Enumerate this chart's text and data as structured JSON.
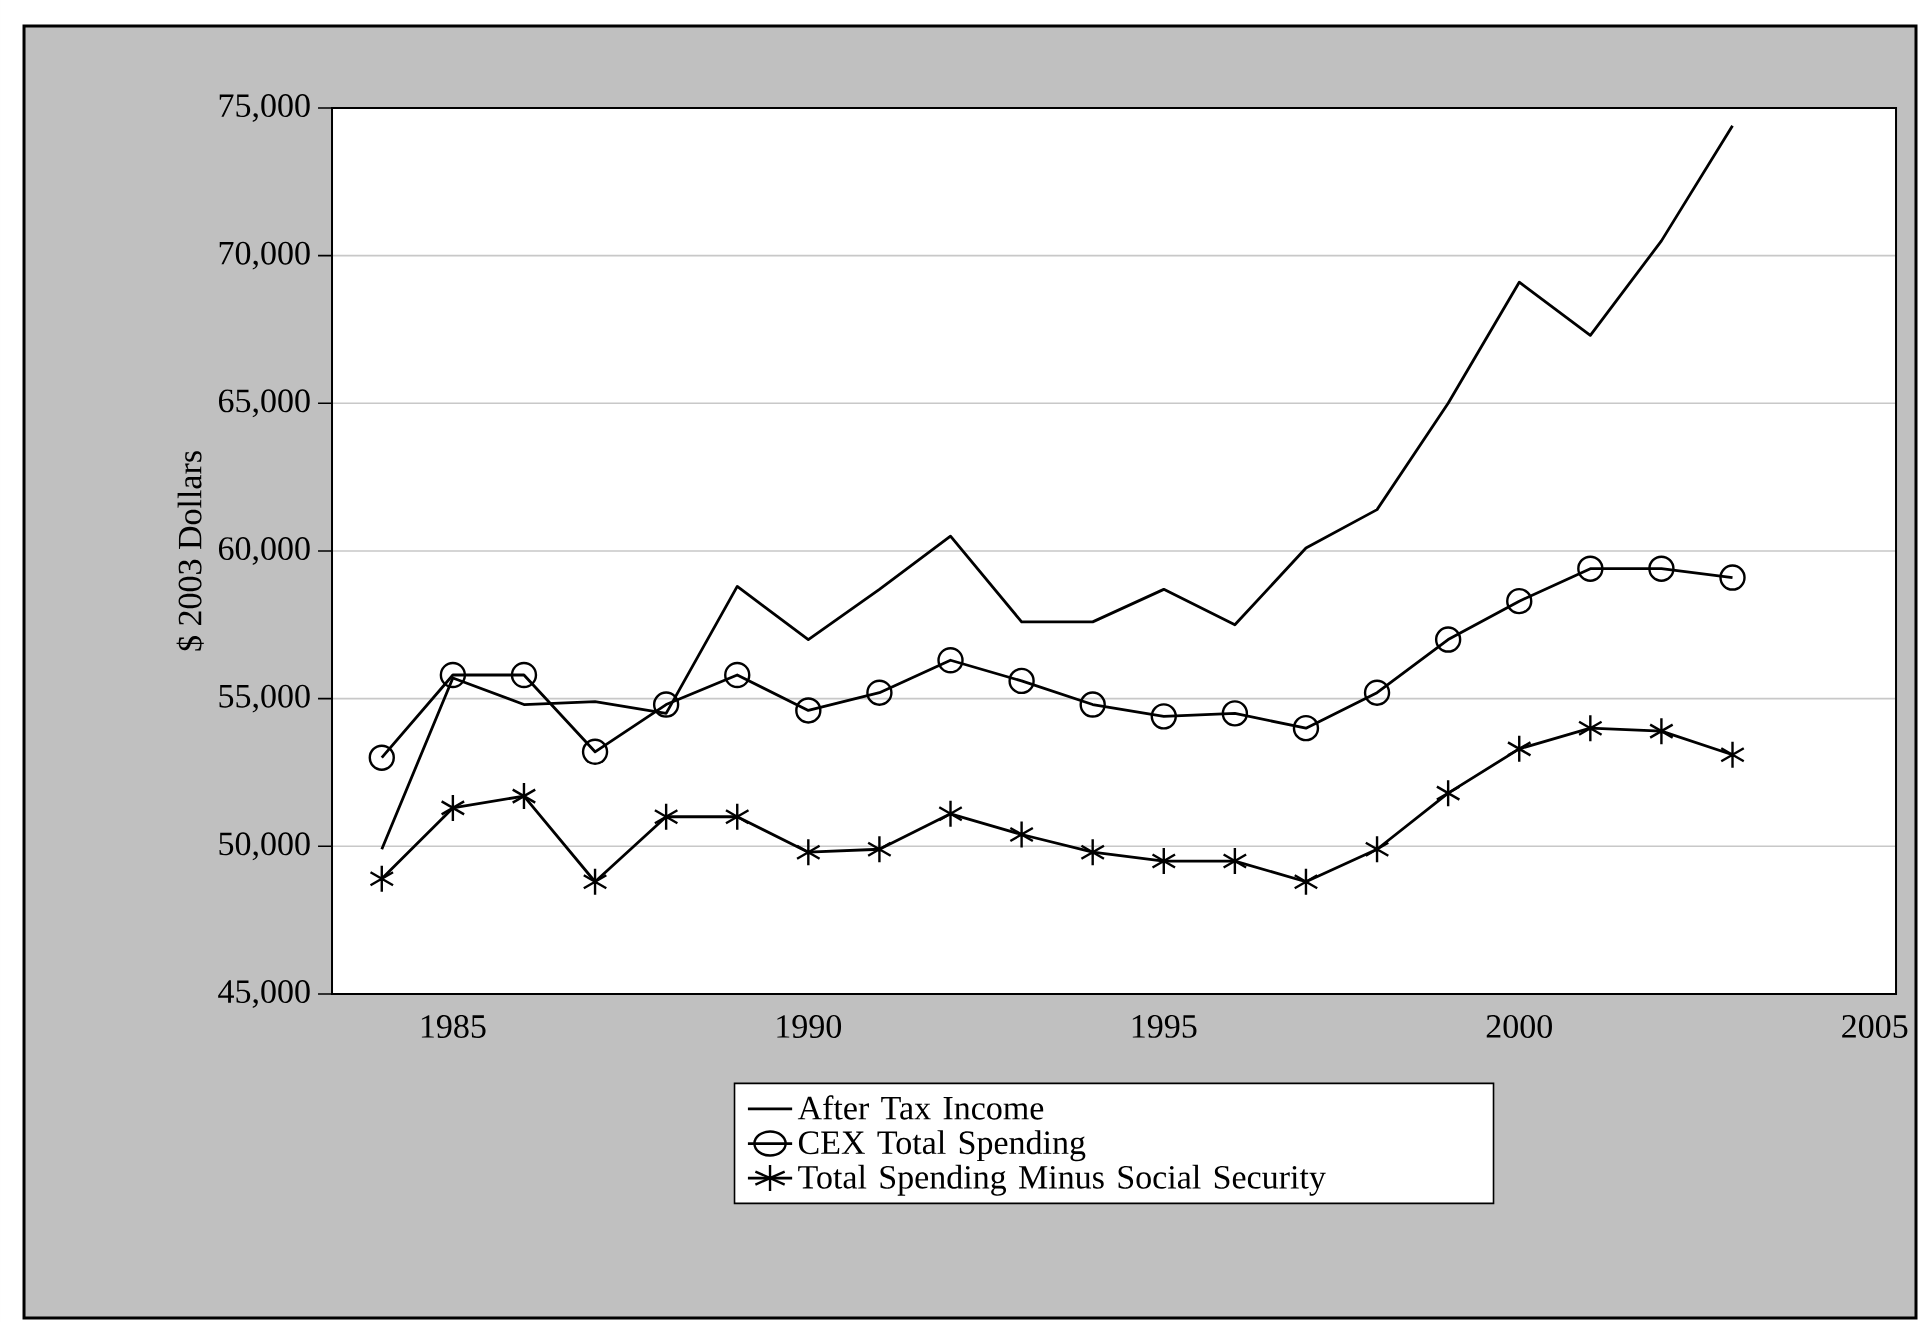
{
  "chart_data": {
    "type": "line",
    "ylabel": "$ 2003 Dollars",
    "x": [
      1984,
      1985,
      1986,
      1987,
      1988,
      1989,
      1990,
      1991,
      1992,
      1993,
      1994,
      1995,
      1996,
      1997,
      1998,
      1999,
      2000,
      2001,
      2002,
      2003
    ],
    "series": [
      {
        "name": "After Tax Income",
        "color": "#000000",
        "marker": "none",
        "values": [
          49900,
          55700,
          54800,
          54900,
          54500,
          58800,
          57000,
          58700,
          60500,
          57600,
          57600,
          58700,
          57500,
          60100,
          61400,
          65000,
          69100,
          67300,
          70500,
          74400
        ]
      },
      {
        "name": "CEX Total Spending",
        "color": "#000000",
        "marker": "circle",
        "values": [
          53000,
          55800,
          55800,
          53200,
          54800,
          55800,
          54600,
          55200,
          56300,
          55600,
          54800,
          54400,
          54500,
          54000,
          55200,
          57000,
          58300,
          59400,
          59400,
          59100
        ]
      },
      {
        "name": "Total Spending Minus Social Security",
        "color": "#000000",
        "marker": "cross",
        "values": [
          48900,
          51300,
          51700,
          48800,
          51000,
          51000,
          49800,
          49900,
          51100,
          50400,
          49800,
          49500,
          49500,
          48800,
          49900,
          51800,
          53300,
          54000,
          53900,
          53100
        ]
      }
    ],
    "xlim": [
      1983.3,
      2005.3
    ],
    "xticks": [
      1985,
      1990,
      1995,
      2000,
      2005
    ],
    "ylim": [
      45000,
      75000
    ],
    "yticks": [
      {
        "value": 45000,
        "label": "45,000"
      },
      {
        "value": 50000,
        "label": "50,000"
      },
      {
        "value": 55000,
        "label": "55,000"
      },
      {
        "value": 60000,
        "label": "60,000"
      },
      {
        "value": 65000,
        "label": "65,000"
      },
      {
        "value": 70000,
        "label": "70,000"
      },
      {
        "value": 75000,
        "label": "75,000"
      }
    ],
    "grid": "y",
    "legend": "bottom",
    "line_style": "solid"
  }
}
